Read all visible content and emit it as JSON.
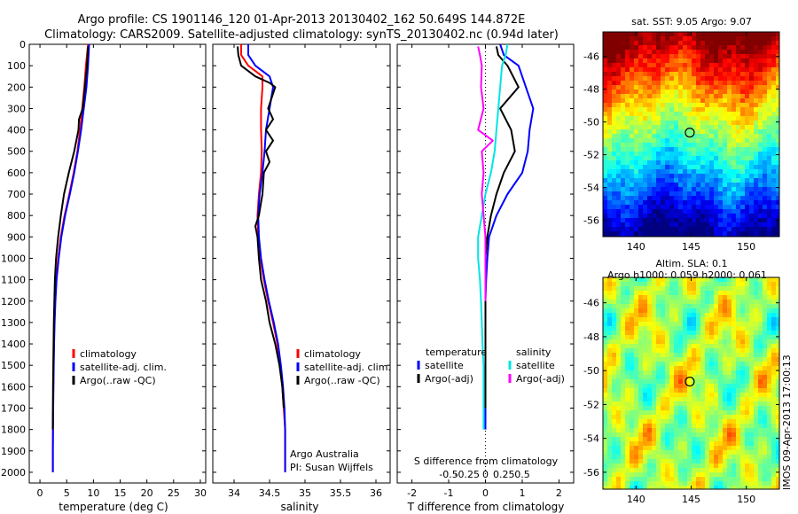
{
  "header": {
    "line1": "Argo profile: CS 1901146_120 01-Apr-2013 20130402_162 50.649S 144.872E",
    "line2": "Climatology: CARS2009. Satellite-adjusted climatology: synTS_20130402.nc (0.94d later)"
  },
  "colors": {
    "climatology": "#ff0000",
    "satellite_clim": "#0000ff",
    "argo": "#000000",
    "sat_temp_diff": "#0000ff",
    "argo_temp_diff": "#000000",
    "sat_sal_diff": "#00e5e5",
    "argo_sal_diff": "#ff00ff"
  },
  "chart_data": [
    {
      "id": "temperature",
      "type": "line",
      "xlabel": "temperature (deg C)",
      "xlim": [
        -2,
        31
      ],
      "xticks": [
        0,
        5,
        10,
        15,
        20,
        25,
        30
      ],
      "ylim": [
        2050,
        0
      ],
      "yticks": [
        0,
        100,
        200,
        300,
        400,
        500,
        600,
        700,
        800,
        900,
        1000,
        1100,
        1200,
        1300,
        1400,
        1500,
        1600,
        1700,
        1800,
        1900,
        2000
      ],
      "legend": [
        "climatology",
        "satellite-adj. clim.",
        "Argo(..raw -QC)"
      ],
      "series": [
        {
          "name": "climatology",
          "color_key": "climatology",
          "x": [
            9.0,
            8.8,
            8.6,
            8.3,
            7.9,
            7.5,
            7.0,
            6.3,
            5.5,
            4.6,
            3.9,
            3.4,
            3.0,
            2.8,
            2.7,
            2.6,
            2.55,
            2.5,
            2.45,
            2.42,
            2.4,
            2.4
          ],
          "y": [
            0,
            50,
            100,
            200,
            300,
            400,
            500,
            600,
            700,
            800,
            900,
            1000,
            1100,
            1200,
            1300,
            1400,
            1500,
            1600,
            1700,
            1800,
            1900,
            2000
          ]
        },
        {
          "name": "satellite-adj. clim.",
          "color_key": "satellite_clim",
          "x": [
            9.2,
            9.1,
            9.0,
            8.7,
            8.2,
            7.7,
            7.1,
            6.4,
            5.6,
            4.7,
            4.0,
            3.5,
            3.1,
            2.9,
            2.75,
            2.65,
            2.58,
            2.52,
            2.48,
            2.45,
            2.42,
            2.42
          ],
          "y": [
            0,
            50,
            100,
            200,
            300,
            400,
            500,
            600,
            700,
            800,
            900,
            1000,
            1100,
            1200,
            1300,
            1400,
            1500,
            1600,
            1700,
            1800,
            1900,
            2000
          ]
        },
        {
          "name": "Argo(..raw -QC)",
          "color_key": "argo",
          "x": [
            9.0,
            8.9,
            8.8,
            8.4,
            8.0,
            7.3,
            7.2,
            6.4,
            5.4,
            4.5,
            3.9,
            3.4,
            3.0,
            2.8,
            2.7,
            2.6,
            2.55,
            2.5,
            2.45,
            2.42,
            2.4
          ],
          "y": [
            10,
            50,
            100,
            200,
            300,
            350,
            400,
            500,
            600,
            700,
            800,
            900,
            1000,
            1100,
            1200,
            1300,
            1400,
            1500,
            1600,
            1700,
            1800
          ]
        }
      ]
    },
    {
      "id": "salinity",
      "type": "line",
      "xlabel": "salinity",
      "xlim": [
        33.7,
        36.2
      ],
      "xticks": [
        34,
        34.5,
        35,
        35.5,
        36
      ],
      "ylim": [
        2050,
        0
      ],
      "legend": [
        "climatology",
        "satellite-adj. clim.",
        "Argo(..raw -QC)"
      ],
      "annotations": [
        "Argo Australia",
        "PI: Susan Wijffels"
      ],
      "series": [
        {
          "name": "climatology",
          "color_key": "climatology",
          "x": [
            34.1,
            34.1,
            34.2,
            34.4,
            34.4,
            34.38,
            34.38,
            34.39,
            34.38,
            34.35,
            34.33,
            34.34,
            34.37,
            34.42,
            34.48,
            34.55,
            34.61,
            34.65,
            34.68,
            34.7,
            34.72,
            34.72
          ],
          "y": [
            0,
            50,
            100,
            150,
            200,
            300,
            400,
            500,
            600,
            700,
            800,
            900,
            1000,
            1100,
            1200,
            1300,
            1400,
            1500,
            1600,
            1700,
            1800,
            2000
          ]
        },
        {
          "name": "satellite-adj. clim.",
          "color_key": "satellite_clim",
          "x": [
            34.2,
            34.2,
            34.3,
            34.5,
            34.55,
            34.5,
            34.45,
            34.43,
            34.4,
            34.36,
            34.34,
            34.35,
            34.38,
            34.43,
            34.49,
            34.56,
            34.62,
            34.66,
            34.69,
            34.71,
            34.72,
            34.72
          ],
          "y": [
            0,
            50,
            100,
            150,
            200,
            300,
            400,
            500,
            600,
            700,
            800,
            900,
            1000,
            1100,
            1200,
            1300,
            1400,
            1500,
            1600,
            1700,
            1800,
            2000
          ]
        },
        {
          "name": "Argo(..raw -QC)",
          "color_key": "argo",
          "x": [
            34.05,
            34.06,
            34.1,
            34.3,
            34.5,
            34.58,
            34.48,
            34.55,
            34.45,
            34.55,
            34.45,
            34.5,
            34.42,
            34.4,
            34.35,
            34.3,
            34.33,
            34.35,
            34.38,
            34.45,
            34.5,
            34.58,
            34.64,
            34.68,
            34.7
          ],
          "y": [
            10,
            50,
            100,
            150,
            180,
            200,
            300,
            350,
            400,
            450,
            500,
            550,
            600,
            700,
            800,
            850,
            900,
            1000,
            1100,
            1200,
            1300,
            1400,
            1500,
            1600,
            1700
          ]
        }
      ]
    },
    {
      "id": "difference",
      "type": "line",
      "xlabel": "T difference from climatology",
      "xlabel_top": "S difference from climatology",
      "xlim": [
        -2.4,
        2.4
      ],
      "xticks": [
        -2,
        -1,
        0,
        1,
        2
      ],
      "xticks_s": [
        "-0.5",
        "-0.25",
        "0",
        "0.25",
        "0.5"
      ],
      "ylim": [
        2050,
        0
      ],
      "legend_titles": [
        "temperature",
        "salinity"
      ],
      "legend": [
        "satellite",
        "Argo(-adj)",
        "satellite",
        "Argo(-adj)"
      ],
      "series": [
        {
          "name": "temperature satellite",
          "color_key": "sat_temp_diff",
          "x": [
            0.4,
            0.5,
            0.9,
            1.1,
            1.3,
            1.2,
            1.15,
            1.0,
            0.6,
            0.3,
            0.1,
            0.05,
            0.02,
            0.0,
            0.0,
            0.0,
            0.0,
            0.0,
            0.0,
            0.0
          ],
          "y": [
            0,
            50,
            100,
            200,
            300,
            400,
            500,
            600,
            700,
            800,
            900,
            1000,
            1100,
            1200,
            1300,
            1400,
            1500,
            1600,
            1700,
            1800
          ]
        },
        {
          "name": "temperature Argo(-adj)",
          "color_key": "argo_temp_diff",
          "x": [
            0.3,
            0.35,
            0.6,
            0.9,
            0.4,
            0.7,
            0.8,
            0.5,
            0.3,
            0.15,
            0.05,
            0.0,
            0.0,
            0.0,
            0.0,
            0.0,
            0.0,
            0.0
          ],
          "y": [
            10,
            50,
            100,
            200,
            300,
            400,
            500,
            600,
            700,
            800,
            900,
            1000,
            1100,
            1200,
            1300,
            1400,
            1500,
            1700
          ]
        },
        {
          "name": "salinity satellite",
          "color_key": "sat_sal_diff",
          "x": [
            0.6,
            0.55,
            0.45,
            0.4,
            0.35,
            0.3,
            0.25,
            0.15,
            0.0,
            -0.1,
            -0.2,
            -0.2,
            -0.15,
            -0.12,
            -0.1,
            -0.08,
            -0.05,
            -0.05,
            -0.05,
            -0.05
          ],
          "y": [
            0,
            50,
            100,
            200,
            300,
            400,
            500,
            600,
            700,
            800,
            900,
            1000,
            1100,
            1200,
            1300,
            1400,
            1500,
            1600,
            1700,
            1800
          ]
        },
        {
          "name": "salinity Argo(-adj)",
          "color_key": "argo_sal_diff",
          "x": [
            -0.2,
            -0.15,
            -0.1,
            -0.12,
            -0.05,
            -0.2,
            0.2,
            -0.1,
            -0.05,
            -0.1,
            -0.05,
            0.0,
            0.0,
            0.0,
            0.0
          ],
          "y": [
            10,
            50,
            100,
            200,
            300,
            400,
            450,
            500,
            600,
            700,
            800,
            900,
            1000,
            1100,
            1200
          ]
        }
      ]
    },
    {
      "id": "sst_map",
      "type": "heatmap",
      "title": "sat. SST: 9.05 Argo: 9.07",
      "xlim": [
        137,
        153
      ],
      "ylim": [
        -57,
        -44.5
      ],
      "xticks": [
        140,
        145,
        150
      ],
      "yticks": [
        -46,
        -48,
        -50,
        -52,
        -54,
        -56
      ],
      "marker": {
        "x": 144.872,
        "y": -50.649
      },
      "field": "temperature gradient, warm (red) in the north to cold (blue) in the south"
    },
    {
      "id": "sla_map",
      "type": "heatmap",
      "title": "Altim. SLA: 0.1",
      "subtitle": "Argo h1000: 0.059 h2000: 0.061",
      "xlim": [
        137,
        153
      ],
      "ylim": [
        -57,
        -44.5
      ],
      "xticks": [
        140,
        145,
        150
      ],
      "yticks": [
        -46,
        -48,
        -50,
        -52,
        -54,
        -56
      ],
      "marker": {
        "x": 144.872,
        "y": -50.649
      }
    }
  ],
  "watermark": "IMOS 09-Apr-2013 17:00:13"
}
